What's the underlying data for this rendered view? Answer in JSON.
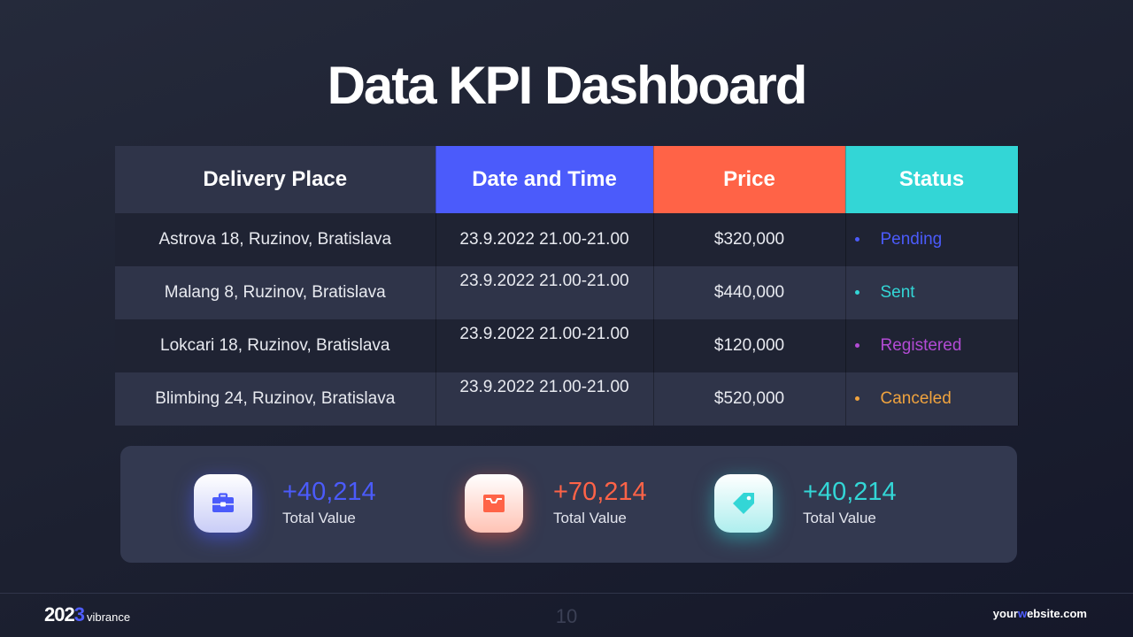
{
  "title": "Data KPI Dashboard",
  "colors": {
    "blue": "#4b5bfb",
    "orange": "#ff6347",
    "teal": "#33d6d6",
    "purple": "#b24bd4",
    "amber": "#f0a33e",
    "header_dark": "#2f3449"
  },
  "table": {
    "headers": [
      "Delivery Place",
      "Date and Time",
      "Price",
      "Status"
    ],
    "rows": [
      {
        "place": "Astrova 18, Ruzinov, Bratislava",
        "datetime": "23.9.2022 21.00-21.00",
        "price": "$320,000",
        "status": "Pending",
        "status_color": "#4b5bfb"
      },
      {
        "place": "Malang 8, Ruzinov, Bratislava",
        "datetime": "23.9.2022 21.00-21.00",
        "price": "$440,000",
        "status": "Sent",
        "status_color": "#33d6d6"
      },
      {
        "place": "Lokcari 18, Ruzinov, Bratislava",
        "datetime": "23.9.2022 21.00-21.00",
        "price": "$120,000",
        "status": "Registered",
        "status_color": "#b24bd4"
      },
      {
        "place": "Blimbing 24, Ruzinov, Bratislava",
        "datetime": "23.9.2022 21.00-21.00",
        "price": "$520,000",
        "status": "Canceled",
        "status_color": "#f0a33e"
      }
    ]
  },
  "stats": [
    {
      "value": "+40,214",
      "label": "Total Value",
      "icon": "briefcase-icon",
      "color": "#4b5bfb"
    },
    {
      "value": "+70,214",
      "label": "Total Value",
      "icon": "inbox-icon",
      "color": "#ff6347"
    },
    {
      "value": "+40,214",
      "label": "Total Value",
      "icon": "tag-icon",
      "color": "#33d6d6"
    }
  ],
  "footer": {
    "brand_year_a": "202",
    "brand_year_b": "3",
    "brand_name": "vibrance",
    "page_number": "10",
    "website_a": "your",
    "website_b": "w",
    "website_c": "ebsite.com"
  }
}
